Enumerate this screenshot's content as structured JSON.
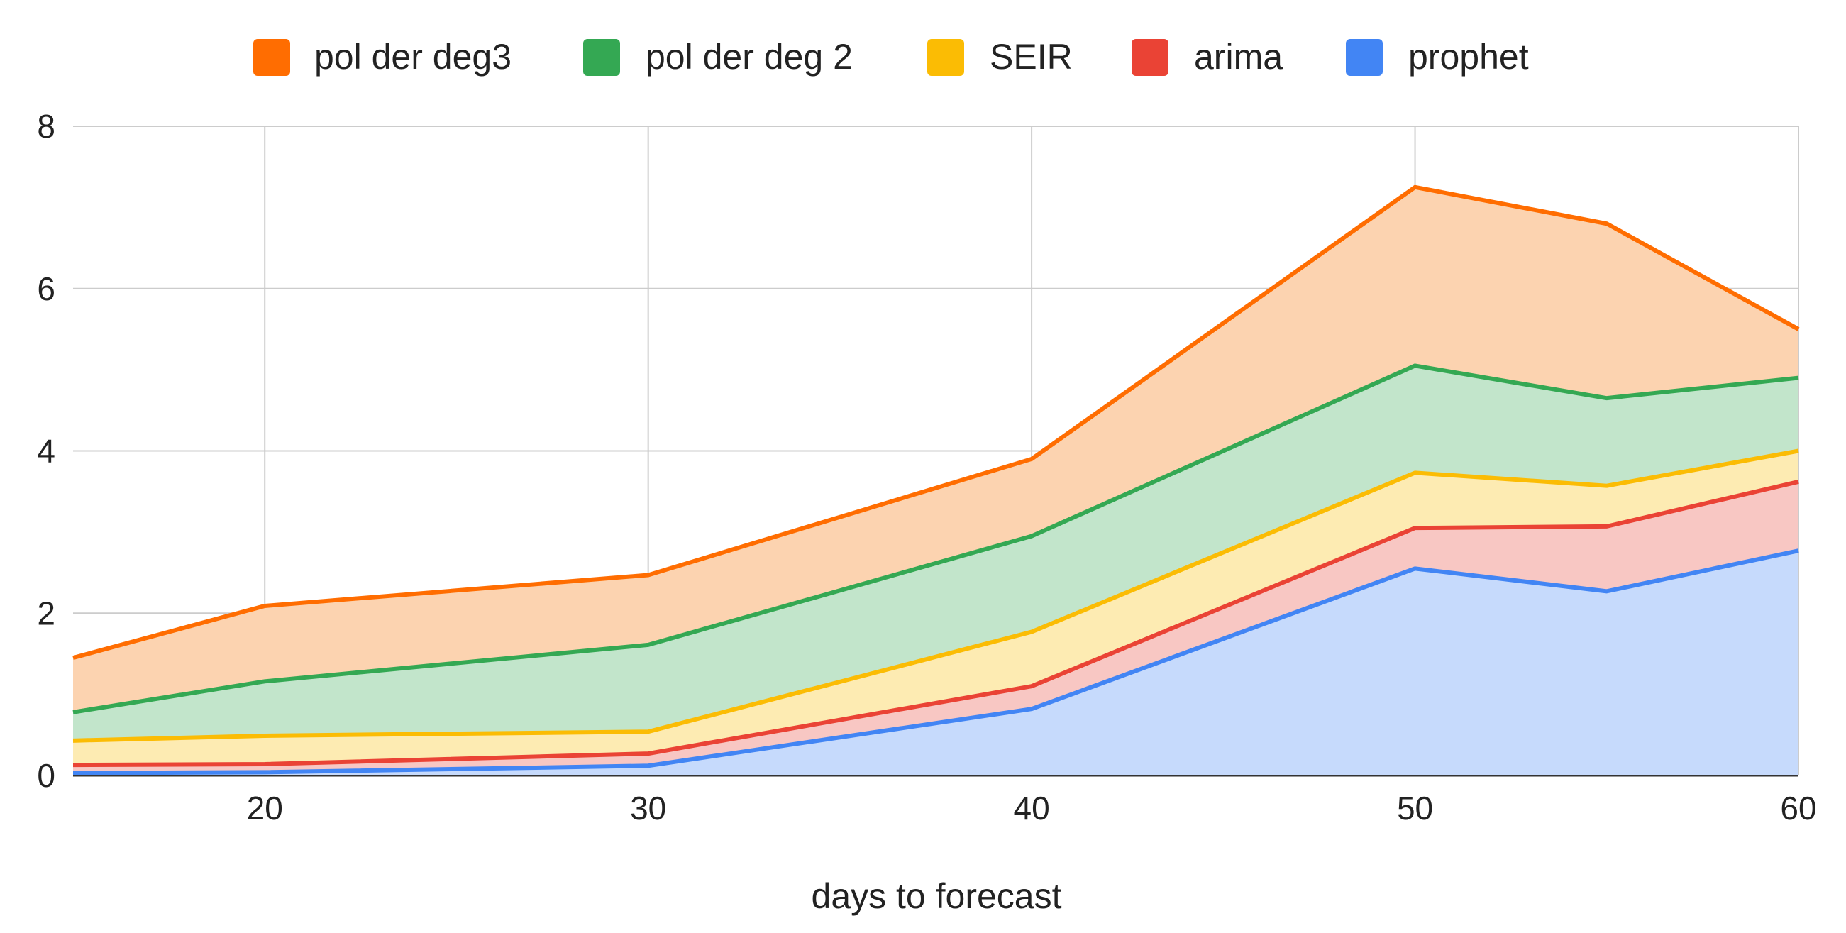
{
  "chart_data": {
    "type": "area",
    "stacked": true,
    "title": "",
    "xlabel": "days to forecast",
    "ylabel": "",
    "x": [
      15,
      20,
      30,
      40,
      50,
      55,
      60
    ],
    "xlim": [
      15,
      60
    ],
    "ylim": [
      0,
      8
    ],
    "xticks": [
      20,
      30,
      40,
      50,
      60
    ],
    "yticks": [
      0,
      2,
      4,
      6,
      8
    ],
    "grid": true,
    "legend_position": "top",
    "series": [
      {
        "name": "prophet",
        "color": "#4285F4",
        "fill": "#C6DAFC",
        "values": [
          0.03,
          0.04,
          0.12,
          0.82,
          2.55,
          2.27,
          2.77
        ]
      },
      {
        "name": "arima",
        "color": "#EA4335",
        "fill": "#F8C7C3",
        "values": [
          0.1,
          0.1,
          0.15,
          0.28,
          0.5,
          0.8,
          0.85
        ]
      },
      {
        "name": "SEIR",
        "color": "#FBBC04",
        "fill": "#FDEBB2",
        "values": [
          0.3,
          0.35,
          0.27,
          0.67,
          0.68,
          0.5,
          0.38
        ]
      },
      {
        "name": "pol der deg 2",
        "color": "#34A853",
        "fill": "#C2E5CB",
        "values": [
          0.35,
          0.67,
          1.07,
          1.18,
          1.32,
          1.08,
          0.9
        ]
      },
      {
        "name": "pol der deg3",
        "color": "#FF6D01",
        "fill": "#FCD3B0",
        "values": [
          0.67,
          0.93,
          0.86,
          0.95,
          2.2,
          2.15,
          0.6
        ]
      }
    ],
    "legend_order": [
      "pol der deg3",
      "pol der deg 2",
      "SEIR",
      "arima",
      "prophet"
    ]
  }
}
